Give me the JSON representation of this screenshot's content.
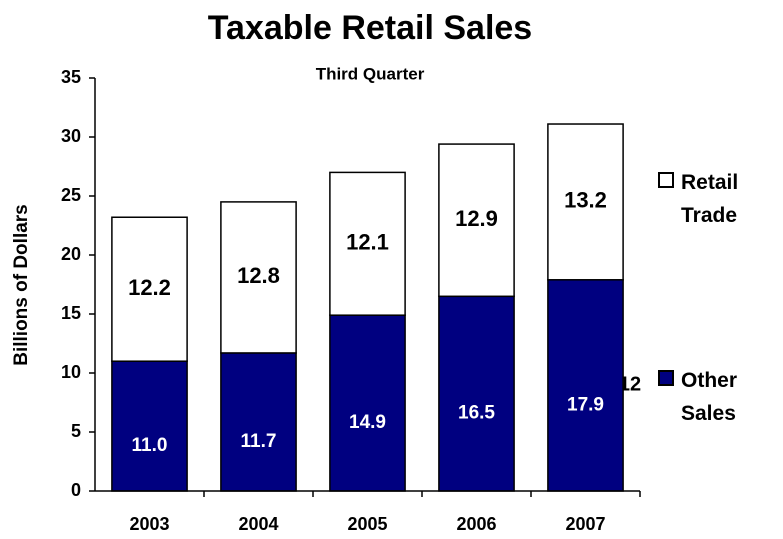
{
  "chart_data": {
    "type": "stacked_bar",
    "title": "Taxable Retail Sales",
    "subtitle": "Third Quarter",
    "y_label": "Billions of Dollars",
    "categories": [
      "2003",
      "2004",
      "2005",
      "2006",
      "2007"
    ],
    "series": [
      {
        "name": "Other Sales",
        "color": "#000080",
        "values": [
          11.0,
          11.7,
          14.9,
          16.5,
          17.9
        ],
        "value_labels": [
          "11.0",
          "11.7",
          "14.9",
          "16.5",
          "17.9"
        ]
      },
      {
        "name": "Retail Trade",
        "color": "#ffffff",
        "values": [
          12.2,
          12.8,
          12.1,
          12.9,
          13.2
        ],
        "value_labels": [
          "12.2",
          "12.8",
          "12.1",
          "12.9",
          "13.2"
        ]
      }
    ],
    "annotation": "12",
    "ylim": [
      0,
      35
    ],
    "yticks": [
      0,
      5,
      10,
      15,
      20,
      25,
      30,
      35
    ],
    "legend": "right"
  }
}
